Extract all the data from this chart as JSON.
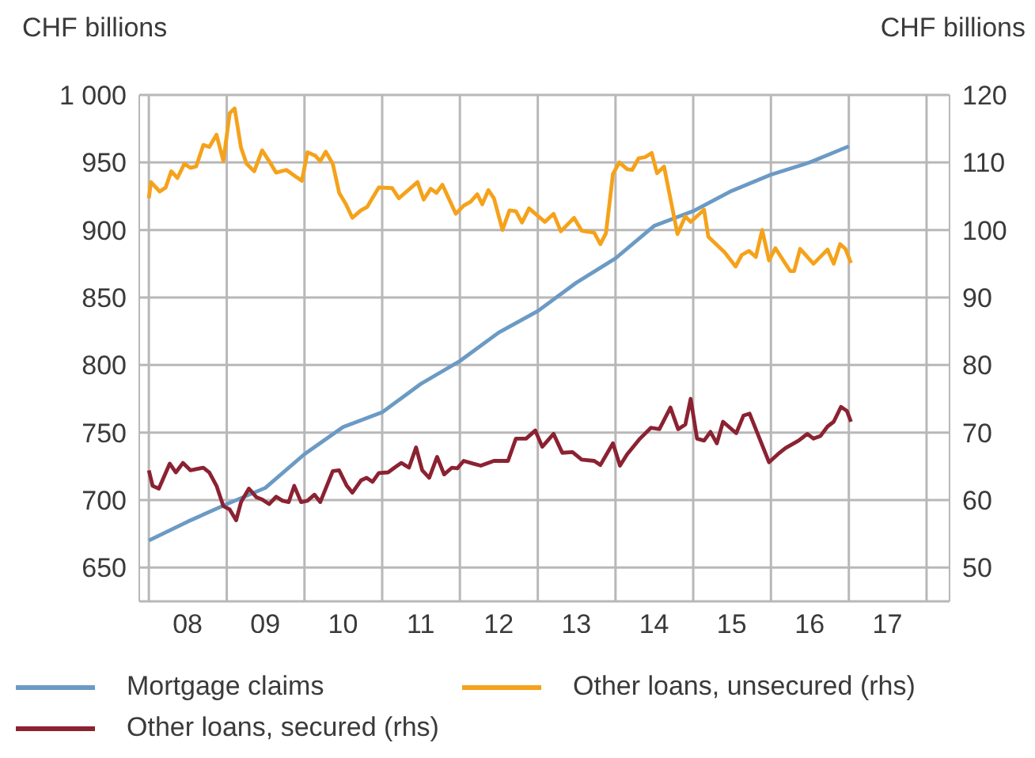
{
  "chart_data": {
    "type": "line",
    "ylabel": "CHF billions",
    "y2label": "CHF billions",
    "xlim": [
      "2007-11-17",
      "2018-04-19"
    ],
    "xticks": [
      {
        "value": "2008-01-01",
        "label": null
      },
      {
        "value": "2008-07-01",
        "label": "08"
      },
      {
        "value": "2009-01-01",
        "label": null
      },
      {
        "value": "2009-07-01",
        "label": "09"
      },
      {
        "value": "2010-01-01",
        "label": null
      },
      {
        "value": "2010-07-01",
        "label": "10"
      },
      {
        "value": "2011-01-01",
        "label": null
      },
      {
        "value": "2011-07-01",
        "label": "11"
      },
      {
        "value": "2012-01-01",
        "label": null
      },
      {
        "value": "2012-07-01",
        "label": "12"
      },
      {
        "value": "2013-01-01",
        "label": null
      },
      {
        "value": "2013-07-01",
        "label": "13"
      },
      {
        "value": "2014-01-01",
        "label": null
      },
      {
        "value": "2014-07-01",
        "label": "14"
      },
      {
        "value": "2015-01-01",
        "label": null
      },
      {
        "value": "2015-07-01",
        "label": "15"
      },
      {
        "value": "2016-01-01",
        "label": null
      },
      {
        "value": "2016-07-01",
        "label": "16"
      },
      {
        "value": "2017-01-01",
        "label": null
      },
      {
        "value": "2017-07-01",
        "label": "17"
      },
      {
        "value": "2018-01-01",
        "label": null
      }
    ],
    "ylim": [
      625,
      1000
    ],
    "yticks": [
      650,
      700,
      750,
      800,
      850,
      900,
      950,
      {
        "value": 1000,
        "label": "1 000"
      }
    ],
    "y2lim": [
      45,
      120
    ],
    "y2ticks": [
      50,
      60,
      70,
      80,
      90,
      100,
      110,
      120
    ],
    "grid": true,
    "legend": "bottom",
    "marker": "none",
    "line_style": "solid",
    "series": [
      {
        "name": "Mortgage claims",
        "color": "#6b9ac4",
        "x": [
          "2008-01-01",
          "2008-07-01",
          "2009-01-01",
          "2009-07-01",
          "2010-01-01",
          "2010-07-01",
          "2011-01-01",
          "2011-07-01",
          "2012-01-01",
          "2012-07-01",
          "2013-01-01",
          "2013-07-01",
          "2014-01-01",
          "2014-07-01",
          "2015-01-01",
          "2015-07-01",
          "2016-01-01",
          "2016-07-01",
          "2017-01-01"
        ],
        "values": [
          670,
          684,
          697,
          709,
          734,
          754,
          765,
          786,
          803,
          824,
          840,
          861,
          879,
          903,
          914,
          929,
          941,
          950,
          962
        ]
      },
      {
        "name": "Other loans, unsecured (rhs)",
        "color": "#f5a21b",
        "axis": "y2",
        "x": [
          "2008-01-01",
          "2008-01-11",
          "2008-02-21",
          "2008-03-20",
          "2008-04-15",
          "2008-05-14",
          "2008-06-16",
          "2008-07-15",
          "2008-08-10",
          "2008-09-13",
          "2008-10-11",
          "2008-11-14",
          "2008-12-16",
          "2009-01-15",
          "2009-02-07",
          "2009-03-09",
          "2009-04-04",
          "2009-05-10",
          "2009-06-16",
          "2009-07-19",
          "2009-08-21",
          "2009-10-08",
          "2009-11-21",
          "2009-12-20",
          "2010-01-15",
          "2010-02-21",
          "2010-03-16",
          "2010-04-11",
          "2010-05-14",
          "2010-06-13",
          "2010-07-15",
          "2010-08-14",
          "2010-09-23",
          "2010-10-22",
          "2010-12-16",
          "2011-02-17",
          "2011-03-20",
          "2011-06-16",
          "2011-07-15",
          "2011-08-17",
          "2011-09-13",
          "2011-10-11",
          "2011-12-13",
          "2012-01-19",
          "2012-02-21",
          "2012-03-23",
          "2012-04-15",
          "2012-05-14",
          "2012-06-09",
          "2012-07-19",
          "2012-08-21",
          "2012-09-20",
          "2012-10-19",
          "2012-11-21",
          "2013-02-03",
          "2013-03-16",
          "2013-04-19",
          "2013-06-20",
          "2013-07-26",
          "2013-09-23",
          "2013-10-22",
          "2013-11-17",
          "2013-12-20",
          "2014-01-19",
          "2014-02-25",
          "2014-03-20",
          "2014-04-19",
          "2014-05-21",
          "2014-06-20",
          "2014-07-15",
          "2014-08-17",
          "2014-10-19",
          "2014-11-25",
          "2014-12-20",
          "2015-02-21",
          "2015-03-13",
          "2015-05-28",
          "2015-07-19",
          "2015-08-17",
          "2015-09-20",
          "2015-10-22",
          "2015-11-21",
          "2015-12-23",
          "2016-01-22",
          "2016-04-01",
          "2016-04-19",
          "2016-05-17",
          "2016-07-19",
          "2016-09-23",
          "2016-10-22",
          "2016-11-21",
          "2016-12-16",
          "2017-01-11"
        ],
        "values": [
          104.7,
          107.1,
          105.7,
          106.3,
          108.7,
          107.7,
          109.8,
          109.2,
          109.4,
          112.6,
          112.3,
          114.1,
          110.2,
          117.3,
          118.0,
          112.2,
          109.8,
          108.7,
          111.8,
          110.2,
          108.5,
          108.9,
          107.9,
          107.3,
          111.5,
          111.0,
          110.2,
          111.6,
          109.8,
          105.5,
          103.8,
          101.8,
          102.9,
          103.4,
          106.3,
          106.2,
          104.7,
          107.1,
          104.5,
          106.1,
          105.5,
          106.7,
          102.4,
          103.6,
          104.2,
          105.3,
          103.8,
          105.9,
          104.7,
          100.0,
          102.9,
          102.8,
          101.1,
          103.2,
          101.2,
          102.4,
          99.8,
          101.8,
          99.9,
          99.6,
          97.9,
          99.5,
          108.3,
          110.0,
          109.0,
          108.9,
          110.6,
          110.8,
          111.4,
          108.4,
          109.4,
          99.4,
          102.0,
          101.2,
          103.0,
          99.0,
          96.7,
          94.6,
          96.3,
          96.9,
          96.0,
          100.0,
          95.5,
          97.3,
          93.9,
          93.9,
          97.2,
          95.0,
          97.1,
          95.0,
          97.9,
          97.2,
          95.1
        ]
      },
      {
        "name": "Other loans, secured (rhs)",
        "color": "#8b2232",
        "axis": "y2",
        "x": [
          "2008-01-01",
          "2008-01-19",
          "2008-02-17",
          "2008-04-08",
          "2008-05-07",
          "2008-06-09",
          "2008-07-15",
          "2008-09-13",
          "2008-10-11",
          "2008-11-14",
          "2008-12-16",
          "2009-01-15",
          "2009-02-14",
          "2009-03-09",
          "2009-04-15",
          "2009-05-21",
          "2009-06-16",
          "2009-07-19",
          "2009-08-21",
          "2009-09-20",
          "2009-10-19",
          "2009-11-14",
          "2009-12-16",
          "2010-01-15",
          "2010-02-17",
          "2010-03-16",
          "2010-05-14",
          "2010-06-13",
          "2010-07-19",
          "2010-08-14",
          "2010-09-23",
          "2010-10-19",
          "2010-11-17",
          "2010-12-16",
          "2011-01-29",
          "2011-02-28",
          "2011-04-01",
          "2011-05-07",
          "2011-06-09",
          "2011-07-08",
          "2011-08-10",
          "2011-09-16",
          "2011-10-19",
          "2011-11-25",
          "2011-12-20",
          "2012-01-19",
          "2012-03-02",
          "2012-04-08",
          "2012-06-09",
          "2012-08-14",
          "2012-09-20",
          "2012-11-07",
          "2012-12-20",
          "2013-01-22",
          "2013-03-16",
          "2013-04-26",
          "2013-06-13",
          "2013-07-26",
          "2013-09-23",
          "2013-10-22",
          "2013-12-20",
          "2014-01-22",
          "2014-02-25",
          "2014-04-26",
          "2014-06-16",
          "2014-07-26",
          "2014-09-16",
          "2014-10-22",
          "2014-11-25",
          "2014-12-20",
          "2015-01-19",
          "2015-02-21",
          "2015-03-23",
          "2015-04-22",
          "2015-05-21",
          "2015-07-22",
          "2015-08-25",
          "2015-09-23",
          "2015-12-23",
          "2016-02-03",
          "2016-03-09",
          "2016-05-10",
          "2016-06-20",
          "2016-07-19",
          "2016-08-21",
          "2016-09-23",
          "2016-10-22",
          "2016-11-25",
          "2016-12-23",
          "2017-01-11"
        ],
        "values": [
          64.4,
          62.1,
          61.7,
          65.4,
          64.1,
          65.5,
          64.4,
          64.8,
          64.1,
          62.1,
          59.1,
          58.6,
          57.0,
          59.7,
          61.7,
          60.4,
          60.1,
          59.4,
          60.5,
          59.9,
          59.7,
          62.1,
          59.7,
          59.9,
          60.8,
          59.7,
          64.3,
          64.4,
          62.1,
          61.1,
          62.9,
          63.3,
          62.7,
          64.0,
          64.1,
          64.8,
          65.5,
          64.8,
          67.8,
          64.4,
          63.3,
          66.4,
          63.8,
          64.8,
          64.7,
          65.8,
          65.4,
          65.1,
          65.8,
          65.8,
          69.1,
          69.1,
          70.3,
          67.9,
          69.8,
          67.0,
          67.1,
          66.0,
          65.8,
          65.2,
          68.4,
          65.1,
          66.8,
          69.1,
          70.7,
          70.5,
          73.7,
          70.5,
          71.2,
          75.0,
          69.1,
          68.8,
          70.1,
          68.4,
          71.6,
          69.9,
          72.5,
          72.8,
          65.6,
          66.8,
          67.7,
          68.8,
          69.8,
          69.1,
          69.5,
          70.9,
          71.6,
          73.8,
          73.2,
          71.6
        ]
      }
    ]
  }
}
